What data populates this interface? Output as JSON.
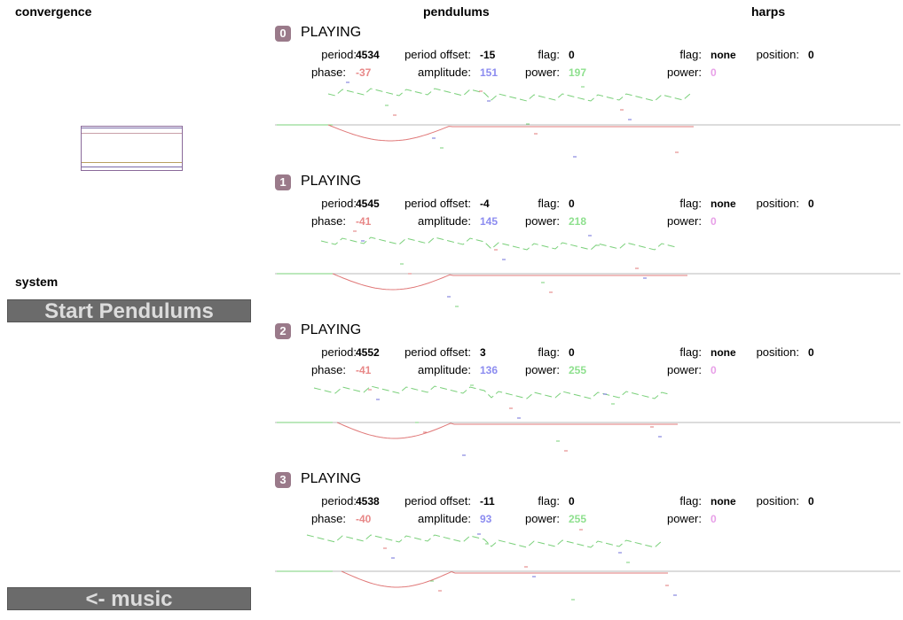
{
  "headings": {
    "convergence": "convergence",
    "pendulums": "pendulums",
    "harps": "harps",
    "system": "system"
  },
  "buttons": {
    "start": "Start Pendulums",
    "music": "<- music"
  },
  "labels": {
    "period": "period:",
    "period_offset": "period offset:",
    "flag": "flag:",
    "phase": "phase:",
    "amplitude": "amplitude:",
    "power": "power:",
    "harp_flag": "flag:",
    "harp_position": "position:",
    "harp_power": "power:"
  },
  "colors": {
    "badge": "#9a7a8a",
    "phase": "#e88888",
    "amplitude": "#8c8cf0",
    "power": "#8ee08e",
    "harp_power": "#e8a0e8"
  },
  "pendulums": [
    {
      "index": "0",
      "state": "PLAYING",
      "period": "4534",
      "period_offset": "-15",
      "flag": "0",
      "phase": "-37",
      "amplitude": "151",
      "power": "197",
      "harp_flag": "none",
      "harp_position": "0",
      "harp_power": "0"
    },
    {
      "index": "1",
      "state": "PLAYING",
      "period": "4545",
      "period_offset": "-4",
      "flag": "0",
      "phase": "-41",
      "amplitude": "145",
      "power": "218",
      "harp_flag": "none",
      "harp_position": "0",
      "harp_power": "0"
    },
    {
      "index": "2",
      "state": "PLAYING",
      "period": "4552",
      "period_offset": "3",
      "flag": "0",
      "phase": "-41",
      "amplitude": "136",
      "power": "255",
      "harp_flag": "none",
      "harp_position": "0",
      "harp_power": "0"
    },
    {
      "index": "3",
      "state": "PLAYING",
      "period": "4538",
      "period_offset": "-11",
      "flag": "0",
      "phase": "-40",
      "amplitude": "93",
      "power": "255",
      "harp_flag": "none",
      "harp_position": "0",
      "harp_power": "0"
    }
  ]
}
